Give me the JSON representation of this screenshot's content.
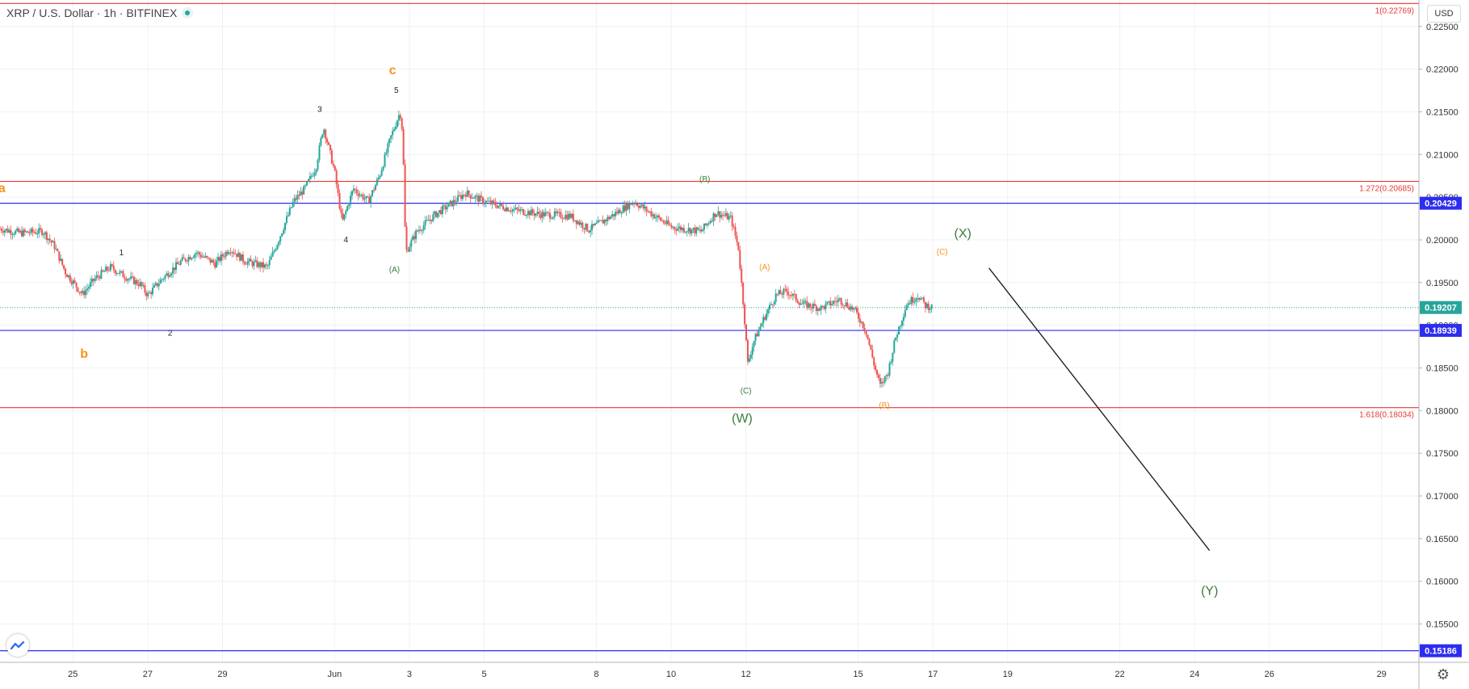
{
  "header": {
    "symbol_title": "XRP / U.S. Dollar · 1h · BITFINEX",
    "currency_button": "USD"
  },
  "colors": {
    "grid": "#eef1f3",
    "up_candle": "#26a69a",
    "down_candle": "#ef5350",
    "fib_line": "#e53935",
    "support_line": "#2d2df0",
    "current_price": "#26a69a",
    "orange_label": "#f7931a",
    "green_label": "#3a7d3a",
    "axis_text": "#333333"
  },
  "icons": {
    "logo": "tradingview-logo-icon",
    "settings": "gear-icon",
    "status": "market-status-dot-icon"
  },
  "chart_data": {
    "type": "candlestick",
    "title": "XRP / U.S. Dollar · 1h · BITFINEX",
    "ylim": [
      0.1505,
      0.2281
    ],
    "y_ticks": [
      "0.22500",
      "0.22000",
      "0.21500",
      "0.21000",
      "0.20500",
      "0.20000",
      "0.19500",
      "0.19000",
      "0.18500",
      "0.18000",
      "0.17500",
      "0.17000",
      "0.16500",
      "0.16000",
      "0.15500"
    ],
    "x_ticks": [
      "25",
      "27",
      "29",
      "Jun",
      "3",
      "5",
      "8",
      "10",
      "12",
      "15",
      "17",
      "19",
      "22",
      "24",
      "26",
      "29"
    ],
    "x_tick_days": [
      25,
      27,
      29,
      32,
      34,
      36,
      39,
      41,
      43,
      46,
      48,
      50,
      53,
      55,
      57,
      60
    ],
    "x_note": "x values are days since May 1 (May 25 = 25, Jun 1 = 32, Jun 12 = 43)",
    "x_range": [
      23.05,
      61.0
    ],
    "price_path": [
      [
        23.05,
        0.2013
      ],
      [
        23.6,
        0.2008
      ],
      [
        24.2,
        0.201
      ],
      [
        24.5,
        0.1993
      ],
      [
        24.8,
        0.1962
      ],
      [
        25.05,
        0.1948
      ],
      [
        25.25,
        0.1936
      ],
      [
        25.6,
        0.1955
      ],
      [
        26.0,
        0.1968
      ],
      [
        26.4,
        0.1957
      ],
      [
        26.8,
        0.1948
      ],
      [
        27.0,
        0.1935
      ],
      [
        27.4,
        0.1955
      ],
      [
        27.9,
        0.1975
      ],
      [
        28.3,
        0.1985
      ],
      [
        28.8,
        0.1972
      ],
      [
        29.2,
        0.199
      ],
      [
        29.6,
        0.1975
      ],
      [
        30.2,
        0.1968
      ],
      [
        30.5,
        0.2
      ],
      [
        30.9,
        0.2045
      ],
      [
        31.2,
        0.206
      ],
      [
        31.5,
        0.2085
      ],
      [
        31.7,
        0.2133
      ],
      [
        32.0,
        0.208
      ],
      [
        32.2,
        0.202
      ],
      [
        32.5,
        0.206
      ],
      [
        32.9,
        0.2045
      ],
      [
        33.2,
        0.2075
      ],
      [
        33.5,
        0.212
      ],
      [
        33.75,
        0.215
      ],
      [
        33.82,
        0.2125
      ],
      [
        33.9,
        0.1985
      ],
      [
        34.2,
        0.201
      ],
      [
        34.7,
        0.203
      ],
      [
        35.2,
        0.2045
      ],
      [
        35.5,
        0.2055
      ],
      [
        36.0,
        0.2045
      ],
      [
        36.8,
        0.2035
      ],
      [
        37.5,
        0.203
      ],
      [
        38.3,
        0.2028
      ],
      [
        38.8,
        0.2012
      ],
      [
        39.3,
        0.2025
      ],
      [
        40.0,
        0.2045
      ],
      [
        40.5,
        0.203
      ],
      [
        41.0,
        0.2015
      ],
      [
        41.8,
        0.201
      ],
      [
        42.2,
        0.2032
      ],
      [
        42.6,
        0.2025
      ],
      [
        42.8,
        0.199
      ],
      [
        42.95,
        0.1915
      ],
      [
        43.05,
        0.1855
      ],
      [
        43.2,
        0.188
      ],
      [
        43.5,
        0.191
      ],
      [
        43.8,
        0.1935
      ],
      [
        44.1,
        0.194
      ],
      [
        44.5,
        0.1925
      ],
      [
        45.0,
        0.192
      ],
      [
        45.5,
        0.193
      ],
      [
        45.9,
        0.1918
      ],
      [
        46.2,
        0.1895
      ],
      [
        46.45,
        0.185
      ],
      [
        46.6,
        0.1828
      ],
      [
        46.8,
        0.1845
      ],
      [
        47.0,
        0.1885
      ],
      [
        47.3,
        0.1925
      ],
      [
        47.6,
        0.1935
      ],
      [
        47.8,
        0.1923
      ],
      [
        48.0,
        0.1921
      ]
    ],
    "horizontal_levels": [
      {
        "price": 0.22769,
        "label": "1(0.22769)",
        "style": "fib"
      },
      {
        "price": 0.20685,
        "label": "1.272(0.20685)",
        "style": "fib"
      },
      {
        "price": 0.18034,
        "label": "1.618(0.18034)",
        "style": "fib"
      },
      {
        "price": 0.20429,
        "label": "0.20429",
        "style": "support"
      },
      {
        "price": 0.18939,
        "label": "0.18939",
        "style": "support"
      },
      {
        "price": 0.15186,
        "label": "0.15186",
        "style": "support"
      }
    ],
    "current_price": {
      "price": 0.19207,
      "label": "0.19207"
    },
    "projection_line": {
      "from": [
        49.5,
        0.1967
      ],
      "to": [
        55.4,
        0.1636
      ]
    },
    "wave_labels": [
      {
        "text": "a",
        "day": 23.1,
        "price": 0.2056,
        "color": "orange",
        "size": "big"
      },
      {
        "text": "b",
        "day": 25.3,
        "price": 0.1862,
        "color": "orange",
        "size": "big"
      },
      {
        "text": "c",
        "day": 33.55,
        "price": 0.2194,
        "color": "orange",
        "size": "big"
      },
      {
        "text": "1",
        "day": 26.3,
        "price": 0.1982,
        "color": "black",
        "size": "small"
      },
      {
        "text": "2",
        "day": 27.6,
        "price": 0.1888,
        "color": "black",
        "size": "small"
      },
      {
        "text": "3",
        "day": 31.6,
        "price": 0.215,
        "color": "black",
        "size": "small"
      },
      {
        "text": "4",
        "day": 32.3,
        "price": 0.1997,
        "color": "black",
        "size": "small"
      },
      {
        "text": "5",
        "day": 33.65,
        "price": 0.2172,
        "color": "black",
        "size": "small"
      },
      {
        "text": "(A)",
        "day": 33.6,
        "price": 0.1962,
        "color": "green",
        "size": "small"
      },
      {
        "text": "(B)",
        "day": 41.9,
        "price": 0.2068,
        "color": "green",
        "size": "small"
      },
      {
        "text": "(C)",
        "day": 43.0,
        "price": 0.182,
        "color": "green",
        "size": "small"
      },
      {
        "text": "(W)",
        "day": 42.9,
        "price": 0.1786,
        "color": "green",
        "size": "big"
      },
      {
        "text": "(A)",
        "day": 43.5,
        "price": 0.1965,
        "color": "orange",
        "size": "small"
      },
      {
        "text": "(B)",
        "day": 46.7,
        "price": 0.1803,
        "color": "orange",
        "size": "small"
      },
      {
        "text": "(C)",
        "day": 48.25,
        "price": 0.1983,
        "color": "orange",
        "size": "small"
      },
      {
        "text": "(X)",
        "day": 48.8,
        "price": 0.2003,
        "color": "green",
        "size": "big"
      },
      {
        "text": "(Y)",
        "day": 55.4,
        "price": 0.1584,
        "color": "green",
        "size": "big"
      }
    ]
  }
}
